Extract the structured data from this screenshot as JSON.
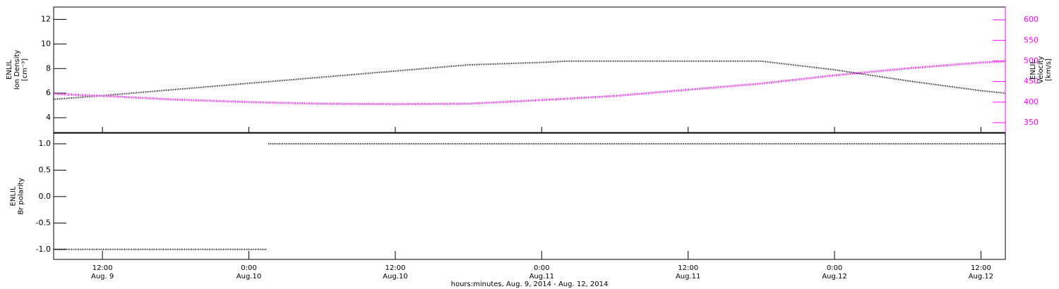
{
  "chart_data": [
    {
      "type": "line",
      "ylabel": [
        "ENLIL",
        "Ion Density",
        "[cm⁻³]"
      ],
      "y2label": [
        "ENLIL",
        "Velocity",
        "[km/s]"
      ],
      "x": [
        8,
        12,
        18,
        24,
        30,
        36,
        42,
        48,
        50,
        54,
        60,
        66,
        72,
        78,
        84,
        86
      ],
      "xlim": [
        8,
        86
      ],
      "ylim": [
        2.8,
        13.0
      ],
      "yticks": [
        4,
        6,
        8,
        10,
        12
      ],
      "y2lim": [
        326,
        631
      ],
      "y2ticks": [
        350,
        400,
        450,
        500,
        550,
        600
      ],
      "series": [
        {
          "name": "Ion Density",
          "color": "#000000",
          "values": [
            5.5,
            5.8,
            6.3,
            6.8,
            7.3,
            7.8,
            8.3,
            8.5,
            8.6,
            8.6,
            8.6,
            8.6,
            7.9,
            7.0,
            6.2,
            6.0
          ]
        },
        {
          "name": "Velocity",
          "color": "#ff00ff",
          "axis": "y2",
          "values": [
            420,
            415,
            406,
            400,
            396,
            395,
            396,
            405,
            408,
            415,
            430,
            445,
            465,
            482,
            496,
            499
          ]
        }
      ]
    },
    {
      "type": "line",
      "ylabel": [
        "ENLIL",
        "Br polarity"
      ],
      "xlabel": "hours:minutes, Aug.  9, 2014 - Aug. 12, 2014",
      "x": [
        8,
        25.5,
        25.55,
        25.6,
        86
      ],
      "xlim": [
        8,
        86
      ],
      "xticks": [
        {
          "value": 12,
          "label": "12:00"
        },
        {
          "value": 24,
          "label": "0:00"
        },
        {
          "value": 36,
          "label": "12:00"
        },
        {
          "value": 48,
          "label": "0:00"
        },
        {
          "value": 60,
          "label": "12:00"
        },
        {
          "value": 72,
          "label": "0:00"
        },
        {
          "value": 84,
          "label": "12:00"
        }
      ],
      "xtick_dates": [
        "Aug. 9",
        "Aug.10",
        "Aug.10",
        "Aug.11",
        "Aug.11",
        "Aug.12",
        "Aug.12"
      ],
      "ylim": [
        -1.19,
        1.2
      ],
      "yticks": [
        {
          "value": -1,
          "label": "-1.0"
        },
        -0.5,
        {
          "value": 0,
          "label": "0.0"
        },
        0.5,
        {
          "value": 1,
          "label": "1.0"
        }
      ],
      "series": [
        {
          "name": "Br polarity",
          "color": "#000000",
          "values": [
            -1,
            -1,
            null,
            1,
            1
          ]
        }
      ]
    }
  ]
}
